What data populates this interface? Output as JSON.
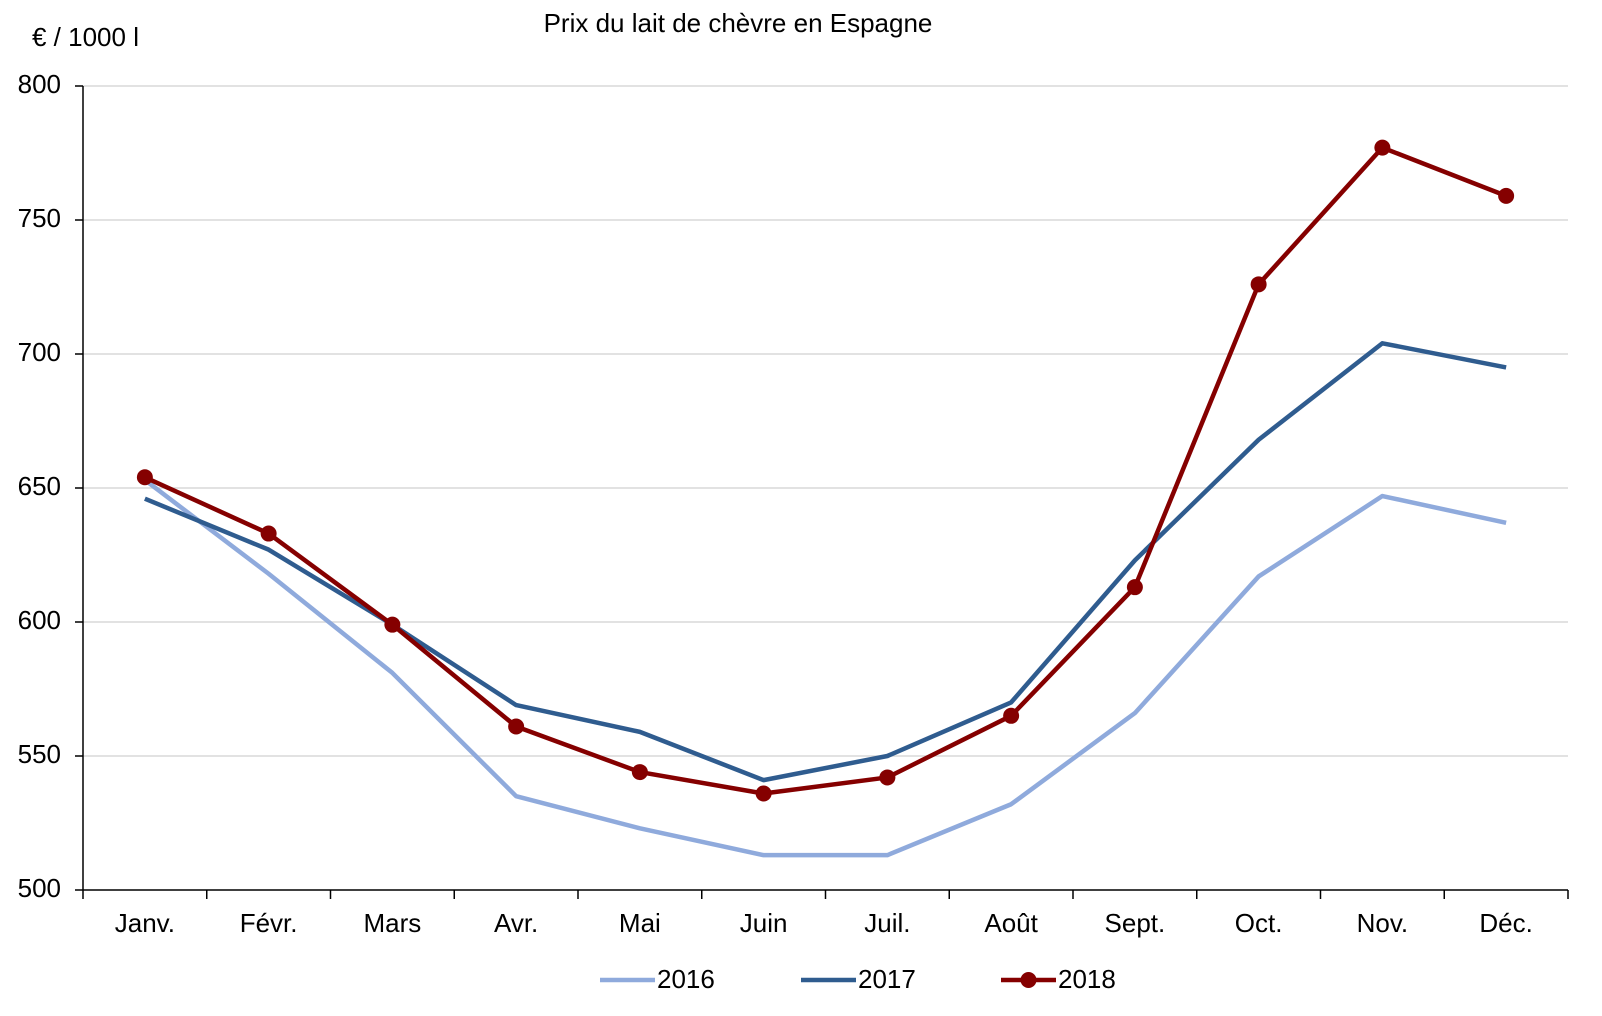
{
  "chart_data": {
    "type": "line",
    "title": "Prix du lait de chèvre en Espagne",
    "y_label": "€ / 1000 l",
    "categories": [
      "Janv.",
      "Févr.",
      "Mars",
      "Avr.",
      "Mai",
      "Juin",
      "Juil.",
      "Août",
      "Sept.",
      "Oct.",
      "Nov.",
      "Déc."
    ],
    "series": [
      {
        "name": "2016",
        "color": "#8faadc",
        "markers": false,
        "values": [
          653,
          618,
          581,
          535,
          523,
          513,
          513,
          532,
          566,
          617,
          647,
          637
        ]
      },
      {
        "name": "2017",
        "color": "#2f5c8f",
        "markers": false,
        "values": [
          646,
          627,
          599,
          569,
          559,
          541,
          550,
          570,
          623,
          668,
          704,
          695
        ]
      },
      {
        "name": "2018",
        "color": "#850000",
        "markers": true,
        "values": [
          654,
          633,
          599,
          561,
          544,
          536,
          542,
          565,
          613,
          726,
          777,
          759
        ]
      }
    ],
    "ylim": [
      500,
      800
    ],
    "yticks": [
      500,
      550,
      600,
      650,
      700,
      750,
      800
    ],
    "grid": true,
    "legend": "bottom"
  }
}
